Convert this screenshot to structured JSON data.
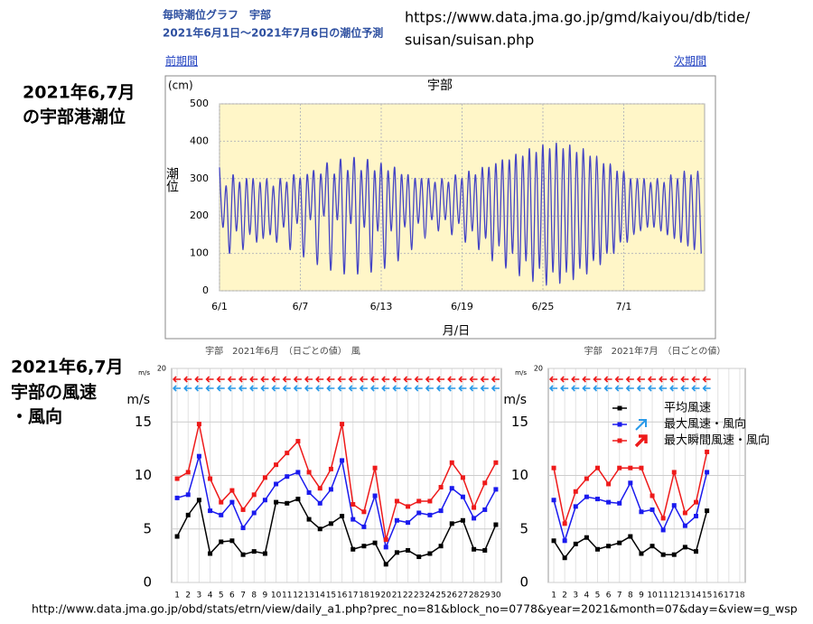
{
  "texts": {
    "tide_header_1": "毎時潮位グラフ　宇部",
    "tide_header_2": "2021年6月1日～2021年7月6日の潮位予測",
    "source_url_lines": [
      "https://www.data.jma.go.jp/gmd/kaiyou/db/tide/",
      "suisan/suisan.php"
    ],
    "prev": "前期間",
    "next": "次期間",
    "tide_label": [
      "2021年6,7月",
      "の宇部港潮位"
    ],
    "wind_label": [
      "2021年6,7月",
      "宇部の風速",
      "・風向"
    ],
    "footer_url": "http://www.data.jma.go.jp/obd/stats/etrn/view/daily_a1.php?prec_no=81&block_no=0778&year=2021&month=07&day=&view=g_wsp"
  },
  "chart_data": [
    {
      "type": "line",
      "title": "宇部",
      "y_unit": "(cm)",
      "y_label": "潮位",
      "x_label": "月/日",
      "color": "#4444c4",
      "grid": true,
      "xlim": [
        0,
        36
      ],
      "xticks": [
        {
          "value": 0,
          "label": "6/1"
        },
        {
          "value": 6,
          "label": "6/7"
        },
        {
          "value": 12,
          "label": "6/13"
        },
        {
          "value": 18,
          "label": "6/19"
        },
        {
          "value": 24,
          "label": "6/25"
        },
        {
          "value": 30,
          "label": "7/1"
        }
      ],
      "ylim": [
        0,
        500
      ],
      "yticks": [
        0,
        100,
        200,
        300,
        400,
        500
      ],
      "x": [
        0,
        0.25,
        0.5,
        0.75,
        1,
        1.25,
        1.5,
        1.75,
        2,
        2.25,
        2.5,
        2.75,
        3,
        3.25,
        3.5,
        3.75,
        4,
        4.25,
        4.5,
        4.75,
        5,
        5.25,
        5.5,
        5.75,
        6,
        6.25,
        6.5,
        6.75,
        7,
        7.25,
        7.5,
        7.75,
        8,
        8.25,
        8.5,
        8.75,
        9,
        9.25,
        9.5,
        9.75,
        10,
        10.25,
        10.5,
        10.75,
        11,
        11.25,
        11.5,
        11.75,
        12,
        12.25,
        12.5,
        12.75,
        13,
        13.25,
        13.5,
        13.75,
        14,
        14.25,
        14.5,
        14.75,
        15,
        15.25,
        15.5,
        15.75,
        16,
        16.25,
        16.5,
        16.75,
        17,
        17.25,
        17.5,
        17.75,
        18,
        18.25,
        18.5,
        18.75,
        19,
        19.25,
        19.5,
        19.75,
        20,
        20.25,
        20.5,
        20.75,
        21,
        21.25,
        21.5,
        21.75,
        22,
        22.25,
        22.5,
        22.75,
        23,
        23.25,
        23.5,
        23.75,
        24,
        24.25,
        24.5,
        24.75,
        25,
        25.25,
        25.5,
        25.75,
        26,
        26.25,
        26.5,
        26.75,
        27,
        27.25,
        27.5,
        27.75,
        28,
        28.25,
        28.5,
        28.75,
        29,
        29.25,
        29.5,
        29.75,
        30,
        30.25,
        30.5,
        30.75,
        31,
        31.25,
        31.5,
        31.75,
        32,
        32.25,
        32.5,
        32.75,
        33,
        33.25,
        33.5,
        33.75,
        34,
        34.25,
        34.5,
        34.75,
        35,
        35.25,
        35.5,
        35.75
      ],
      "values": [
        330,
        170,
        280,
        100,
        310,
        160,
        290,
        110,
        300,
        150,
        300,
        130,
        290,
        140,
        300,
        150,
        280,
        130,
        300,
        170,
        290,
        110,
        310,
        180,
        300,
        90,
        310,
        190,
        320,
        70,
        310,
        200,
        340,
        55,
        310,
        190,
        350,
        45,
        320,
        180,
        355,
        45,
        320,
        170,
        350,
        50,
        320,
        160,
        340,
        60,
        320,
        160,
        330,
        80,
        310,
        170,
        310,
        110,
        300,
        180,
        300,
        140,
        300,
        190,
        290,
        160,
        300,
        190,
        290,
        150,
        310,
        180,
        300,
        130,
        320,
        160,
        310,
        110,
        330,
        140,
        330,
        80,
        340,
        120,
        350,
        60,
        350,
        100,
        365,
        40,
        360,
        80,
        380,
        25,
        370,
        60,
        390,
        15,
        380,
        50,
        395,
        20,
        380,
        50,
        390,
        30,
        370,
        60,
        380,
        45,
        360,
        80,
        360,
        70,
        340,
        100,
        340,
        100,
        320,
        130,
        320,
        130,
        300,
        150,
        300,
        160,
        300,
        170,
        290,
        170,
        300,
        160,
        290,
        150,
        310,
        140,
        300,
        130,
        320,
        120,
        310,
        110,
        320,
        100
      ]
    },
    {
      "type": "line",
      "title": "宇部　2021年6月　（日ごとの値）　風",
      "y_unit": "m/s",
      "grid": true,
      "ylim": [
        0,
        20
      ],
      "yticks": [
        0,
        5,
        10,
        15,
        20
      ],
      "categories": [
        "1",
        "2",
        "3",
        "4",
        "5",
        "6",
        "7",
        "8",
        "9",
        "10",
        "11",
        "12",
        "13",
        "14",
        "15",
        "16",
        "17",
        "18",
        "19",
        "20",
        "21",
        "22",
        "23",
        "24",
        "25",
        "26",
        "27",
        "28",
        "29",
        "30"
      ],
      "series": [
        {
          "color": "#000000",
          "values": [
            4.3,
            6.3,
            7.7,
            2.7,
            3.8,
            3.9,
            2.6,
            2.9,
            2.7,
            7.5,
            7.4,
            7.8,
            5.9,
            5.0,
            5.5,
            6.2,
            3.1,
            3.4,
            3.7,
            1.7,
            2.8,
            3.0,
            2.4,
            2.7,
            3.4,
            5.5,
            5.8,
            3.1,
            3.0,
            5.4
          ]
        },
        {
          "color": "#1a1aee",
          "values": [
            7.9,
            8.2,
            11.8,
            6.7,
            6.3,
            7.5,
            5.1,
            6.5,
            7.7,
            9.2,
            9.9,
            10.3,
            8.4,
            7.4,
            8.7,
            11.4,
            5.9,
            5.2,
            8.1,
            3.3,
            5.8,
            5.6,
            6.5,
            6.3,
            6.7,
            8.8,
            8.0,
            6.0,
            6.8,
            8.7
          ]
        },
        {
          "color": "#ee1a1a",
          "values": [
            9.7,
            10.3,
            14.8,
            9.7,
            7.5,
            8.6,
            6.8,
            8.2,
            9.8,
            11.0,
            12.1,
            13.2,
            10.3,
            8.8,
            10.6,
            14.8,
            7.3,
            6.6,
            10.7,
            4.0,
            7.6,
            7.1,
            7.6,
            7.6,
            8.9,
            11.2,
            9.8,
            7.0,
            9.3,
            11.2
          ]
        }
      ]
    },
    {
      "type": "line",
      "title": "宇部　2021年7月　（日ごとの値）",
      "y_unit": "m/s",
      "grid": true,
      "legend": true,
      "ylim": [
        0,
        20
      ],
      "yticks": [
        0,
        5,
        10,
        15,
        20
      ],
      "categories": [
        "1",
        "2",
        "3",
        "4",
        "5",
        "6",
        "7",
        "8",
        "9",
        "10",
        "11",
        "12",
        "13",
        "14",
        "15",
        "16",
        "17",
        "18"
      ],
      "series": [
        {
          "name": "平均風速",
          "color": "#000000",
          "values": [
            3.9,
            2.3,
            3.6,
            4.2,
            3.1,
            3.4,
            3.7,
            4.3,
            2.7,
            3.4,
            2.6,
            2.6,
            3.3,
            2.9,
            6.7,
            null,
            null,
            null
          ]
        },
        {
          "name": "最大風速・風向",
          "color": "#1a1aee",
          "values": [
            7.7,
            3.9,
            7.1,
            8.0,
            7.8,
            7.5,
            7.4,
            9.3,
            6.6,
            6.8,
            4.9,
            7.2,
            5.3,
            6.2,
            10.3,
            null,
            null,
            null
          ]
        },
        {
          "name": "最大瞬間風速・風向",
          "color": "#ee1a1a",
          "values": [
            10.7,
            5.5,
            8.5,
            9.7,
            10.7,
            9.2,
            10.7,
            10.7,
            10.7,
            8.1,
            6.0,
            10.3,
            6.5,
            7.5,
            12.2,
            null,
            null,
            null
          ]
        }
      ]
    }
  ]
}
